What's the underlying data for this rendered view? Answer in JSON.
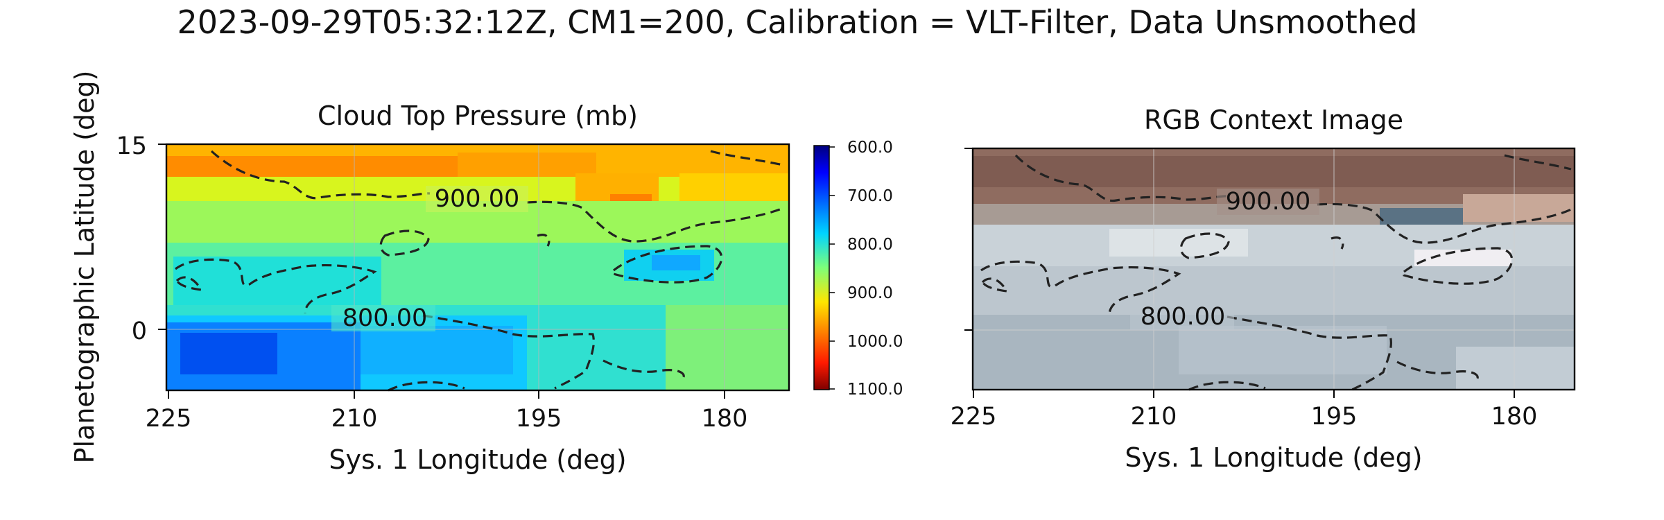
{
  "figure": {
    "title": "2023-09-29T05:32:12Z, CM1=200, Calibration = VLT-Filter, Data Unsmoothed"
  },
  "chart_data": [
    {
      "type": "heatmap",
      "title": "Cloud Top Pressure (mb)",
      "xlabel": "Sys. 1 Longitude (deg)",
      "ylabel": "Planetographic Latitude (deg)",
      "xlim": [
        225,
        173
      ],
      "ylim": [
        -5,
        15
      ],
      "xticks": [
        "225",
        "210",
        "195",
        "180"
      ],
      "yticks": [
        "15",
        "0"
      ],
      "grid": true,
      "colorbar": {
        "cmap": "jet",
        "range": [
          600,
          1100
        ],
        "reversed": true,
        "ticks": [
          "600.0",
          "700.0",
          "800.0",
          "900.0",
          "1000.0",
          "1100.0"
        ]
      },
      "contours": [
        {
          "level": 900,
          "label": "900.00",
          "style": "dashed"
        },
        {
          "level": 800,
          "label": "800.00",
          "style": "dashed"
        }
      ],
      "value_bands": [
        {
          "lat_range": [
            12,
            15
          ],
          "pressure": 960
        },
        {
          "lat_range": [
            9,
            12
          ],
          "pressure": 910
        },
        {
          "lat_range": [
            3,
            9
          ],
          "pressure": 850
        },
        {
          "lat_range": [
            0,
            3
          ],
          "pressure": 810
        },
        {
          "lat_range": [
            -5,
            0
          ],
          "pressure": 760
        }
      ]
    },
    {
      "type": "image",
      "title": "RGB Context Image",
      "xlabel": "Sys. 1 Longitude (deg)",
      "xlim": [
        225,
        173
      ],
      "ylim": [
        -5,
        15
      ],
      "xticks": [
        "225",
        "210",
        "195",
        "180"
      ],
      "grid": true,
      "contours": [
        {
          "level": 900,
          "label": "900.00",
          "style": "dashed"
        },
        {
          "level": 800,
          "label": "800.00",
          "style": "dashed"
        }
      ],
      "colors": {
        "north_belt": "#8e6a5e",
        "zone": "#c8d2d8",
        "south": "#aebcc6"
      }
    }
  ]
}
